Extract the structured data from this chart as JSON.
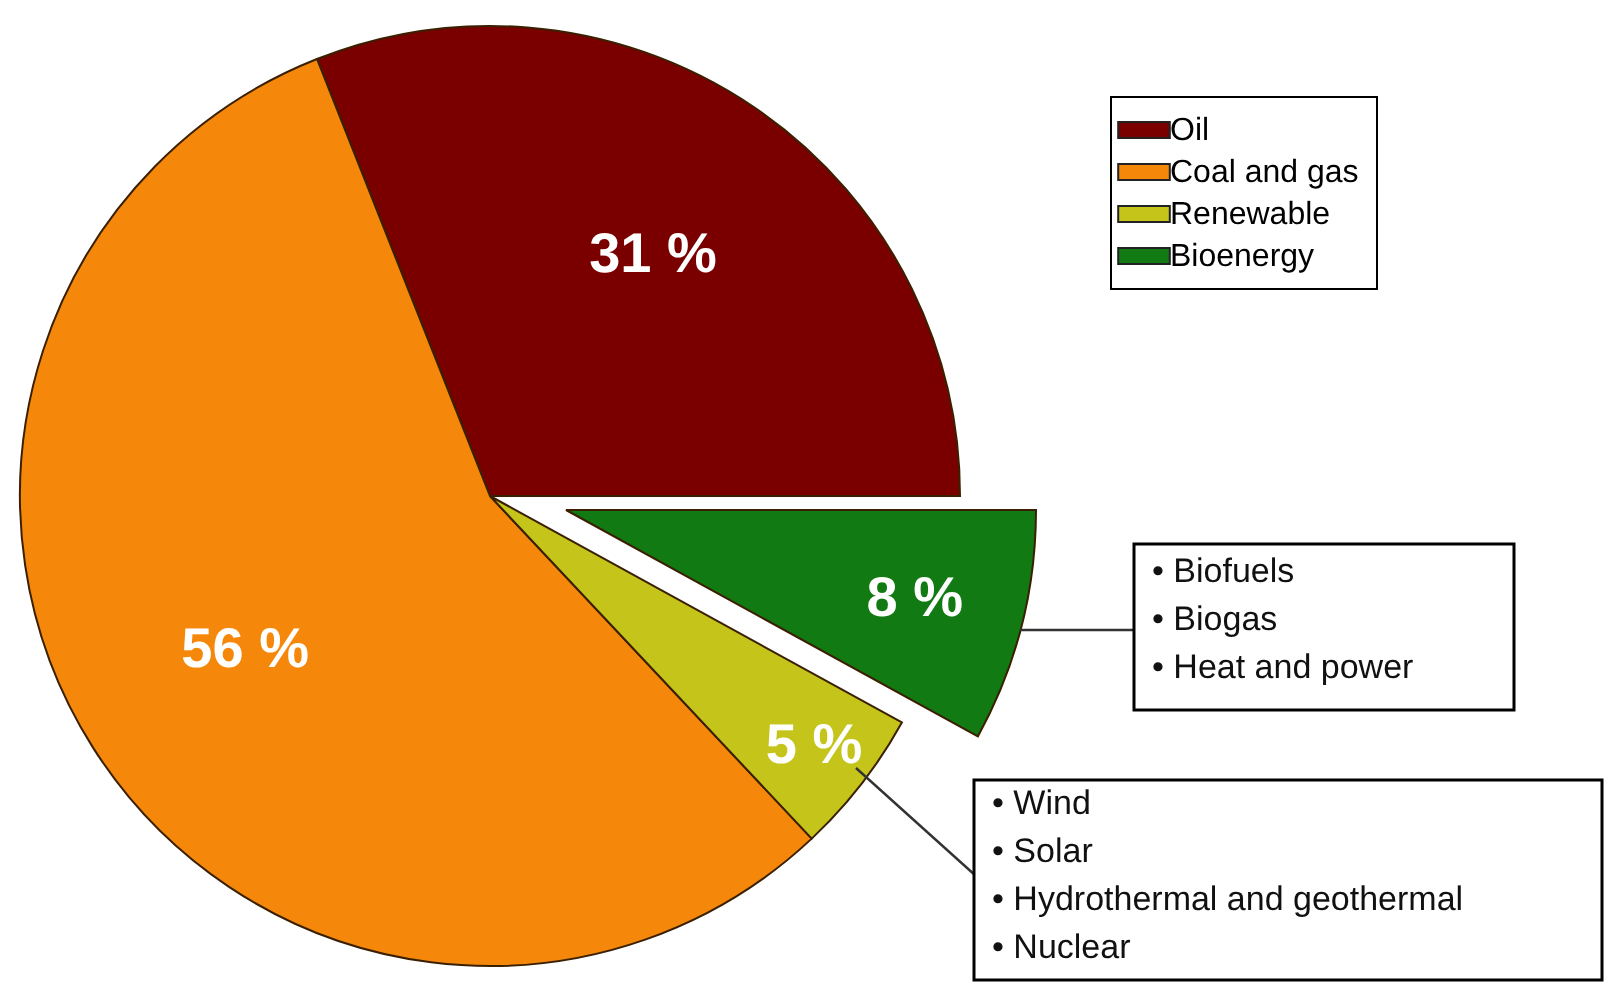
{
  "chart_data": {
    "type": "pie",
    "categories": [
      "Oil",
      "Coal and gas",
      "Renewable",
      "Bioenergy"
    ],
    "values": [
      31,
      56,
      5,
      8
    ],
    "colors": [
      "#7a0000",
      "#f5870a",
      "#c4c41a",
      "#127a12"
    ],
    "value_labels": [
      "31 %",
      "56 %",
      "5 %",
      "8 %"
    ],
    "legend": "top right",
    "annotations": [
      "• Biofuels\n• Biogas\n• Heat and power",
      "• Wind\n• Solar\n• Hydrothermal and geothermal\n• Nuclear"
    ]
  }
}
